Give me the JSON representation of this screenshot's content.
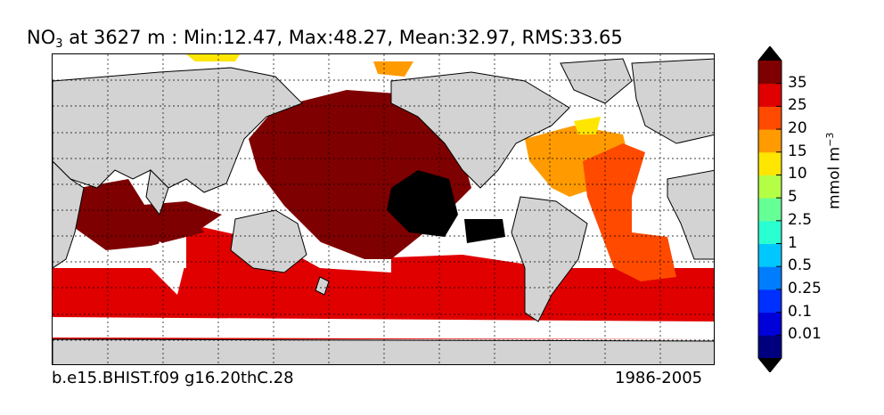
{
  "title": {
    "variable": "NO",
    "subscript": "3",
    "rest": " at 3627 m : Min:12.47, Max:48.27, Mean:32.97, RMS:33.65"
  },
  "footer": {
    "case_name": "b.e15.BHIST.f09 g16.20thC.28",
    "years": "1986-2005"
  },
  "colorbar": {
    "unit_base": "mmol m",
    "unit_exp": "−3",
    "ticks": [
      "35",
      "25",
      "20",
      "15",
      "10",
      "5",
      "2.5",
      "1",
      "0.5",
      "0.25",
      "0.1",
      "0.01"
    ],
    "colors": [
      "#00007f",
      "#0000d8",
      "#0030ff",
      "#007dff",
      "#00c8ff",
      "#2affd2",
      "#66ff96",
      "#b4ff46",
      "#ffe600",
      "#ff9b00",
      "#ff4a00",
      "#e00000",
      "#7f0000"
    ],
    "extend": "both"
  },
  "map": {
    "land_color": "#d3d3d3",
    "missing_color": "#ffffff",
    "grid": true
  }
}
